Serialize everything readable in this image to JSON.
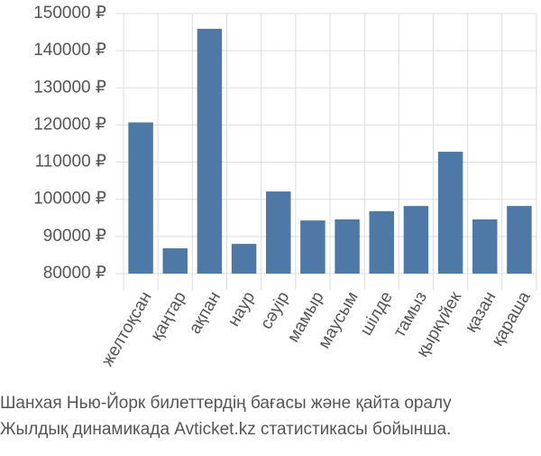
{
  "chart_data": {
    "type": "bar",
    "caption": [
      "Шанхая Нью-Йорк билеттердің бағасы және қайта оралу",
      "Жылдық динамикада Avticket.kz статистикасы бойынша."
    ],
    "categories": [
      "желтоқсан",
      "қаңтар",
      "ақпан",
      "наур",
      "сәуір",
      "мамыр",
      "маусым",
      "шілде",
      "тамыз",
      "қыркүйек",
      "қазан",
      "қараша"
    ],
    "values": [
      120700,
      86800,
      145900,
      88000,
      102100,
      94300,
      94600,
      96800,
      98200,
      112800,
      94600,
      98200
    ],
    "color": "#4e79a7",
    "ylim": [
      80000,
      150000
    ],
    "yticks": [
      {
        "value": 80000,
        "label": "80000 ₽"
      },
      {
        "value": 90000,
        "label": "90000 ₽"
      },
      {
        "value": 100000,
        "label": "100000 ₽"
      },
      {
        "value": 110000,
        "label": "110000 ₽"
      },
      {
        "value": 120000,
        "label": "120000 ₽"
      },
      {
        "value": 130000,
        "label": "130000 ₽"
      },
      {
        "value": 140000,
        "label": "140000 ₽"
      },
      {
        "value": 150000,
        "label": "150000 ₽"
      }
    ],
    "grid": true
  }
}
